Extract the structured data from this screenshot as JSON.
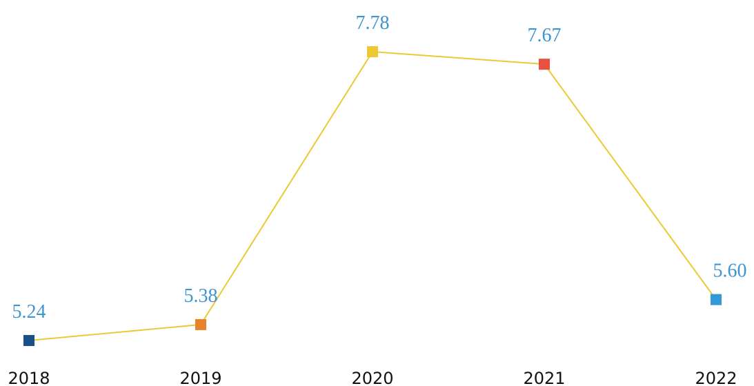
{
  "chart_data": {
    "type": "line",
    "categories": [
      "2018",
      "2019",
      "2020",
      "2021",
      "2022"
    ],
    "values": [
      5.24,
      5.38,
      7.78,
      7.67,
      5.6
    ],
    "value_labels": [
      "5.24",
      "5.38",
      "7.78",
      "7.67",
      "5.60"
    ],
    "color": "#ecc832",
    "marker_colors": [
      "#1a4f8a",
      "#e8822a",
      "#ecc832",
      "#e8503f",
      "#3399d6"
    ]
  }
}
